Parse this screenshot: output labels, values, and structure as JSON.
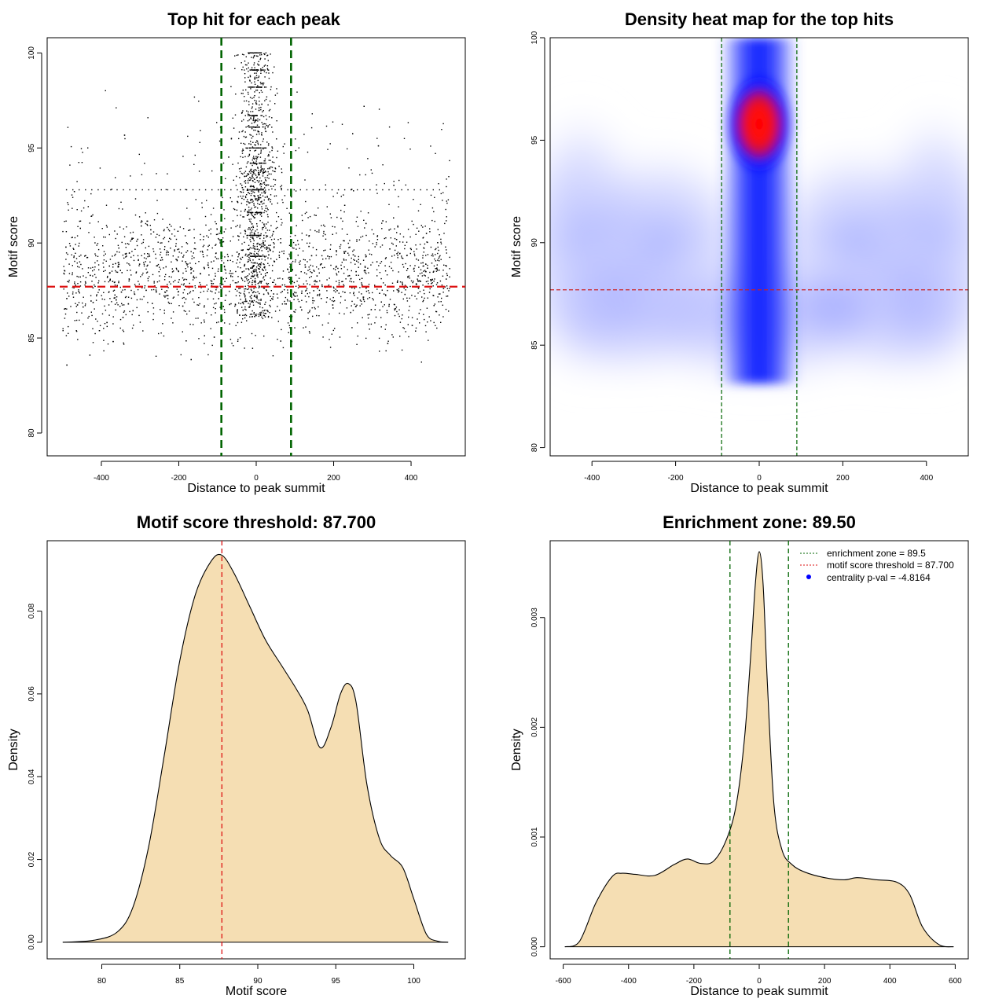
{
  "chart_data": [
    {
      "id": "scatter",
      "type": "scatter",
      "title": "Top hit for each peak",
      "xlabel": "Distance to peak summit",
      "ylabel": "Motif score",
      "xlim": [
        -540,
        540
      ],
      "ylim": [
        78.8,
        100.8
      ],
      "xticks": [
        -400,
        -200,
        0,
        200,
        400
      ],
      "yticks": [
        80,
        85,
        90,
        95,
        100
      ],
      "vlines": [
        -90,
        90
      ],
      "hline": 87.7,
      "line_colors": {
        "vertical": "#006400",
        "horizontal": "#dd1111"
      },
      "point_color": "#000000",
      "points_note": "approx. 3000 points, x in [-500, 500], y in [80, 100]; dense near x=0 and y 85-92"
    },
    {
      "id": "heatmap",
      "type": "heatmap",
      "title": "Density heat map for the top hits",
      "xlabel": "Distance to peak summit",
      "ylabel": "Motif score",
      "xlim": [
        -500,
        500
      ],
      "ylim": [
        79.6,
        100
      ],
      "xticks": [
        -400,
        -200,
        0,
        200,
        400
      ],
      "yticks": [
        80,
        85,
        90,
        95,
        100
      ],
      "vlines": [
        -90,
        90
      ],
      "hline": 87.7,
      "colors": {
        "low": "#ffffff",
        "mid": "#0000ff",
        "high": "#ff0000"
      },
      "peak": {
        "x": 0,
        "y": 95.8
      }
    },
    {
      "id": "score_density",
      "type": "area",
      "title": "Motif score threshold: 87.700",
      "xlabel": "Motif score",
      "ylabel": "Density",
      "xlim": [
        76.5,
        103.3
      ],
      "ylim": [
        -0.004,
        0.097
      ],
      "xticks": [
        80,
        85,
        90,
        95,
        100
      ],
      "yticks": [
        0.0,
        0.02,
        0.04,
        0.06,
        0.08
      ],
      "ytick_labels": [
        "0.00",
        "0.02",
        "0.04",
        "0.06",
        "0.08"
      ],
      "vline": 87.7,
      "fill": "#f5deb3",
      "x": [
        77.5,
        79.5,
        81.0,
        82.0,
        83.0,
        84.0,
        85.0,
        86.0,
        87.0,
        87.7,
        88.5,
        89.5,
        90.5,
        91.5,
        92.5,
        93.2,
        94.0,
        94.7,
        95.3,
        95.8,
        96.3,
        97.0,
        97.8,
        98.5,
        99.3,
        100.0,
        100.8,
        101.5,
        102.2
      ],
      "y": [
        0.0,
        0.0005,
        0.0025,
        0.0085,
        0.023,
        0.045,
        0.068,
        0.084,
        0.092,
        0.0935,
        0.089,
        0.081,
        0.073,
        0.067,
        0.061,
        0.056,
        0.047,
        0.052,
        0.06,
        0.0625,
        0.058,
        0.038,
        0.025,
        0.021,
        0.018,
        0.0105,
        0.002,
        0.0003,
        0.0
      ]
    },
    {
      "id": "distance_density",
      "type": "area",
      "title": "Enrichment zone: 89.50",
      "xlabel": "Distance to peak summit",
      "ylabel": "Density",
      "xlim": [
        -640,
        640
      ],
      "ylim": [
        -0.00011,
        0.0037
      ],
      "xticks": [
        -600,
        -400,
        -200,
        0,
        200,
        400,
        600
      ],
      "yticks": [
        0.0,
        0.001,
        0.002,
        0.003
      ],
      "ytick_labels": [
        "0.000",
        "0.001",
        "0.002",
        "0.003"
      ],
      "vlines": [
        -89.5,
        89.5
      ],
      "fill": "#f5deb3",
      "x": [
        -595,
        -550,
        -500,
        -450,
        -420,
        -380,
        -320,
        -260,
        -220,
        -180,
        -140,
        -100,
        -70,
        -45,
        -25,
        -12,
        0,
        12,
        25,
        45,
        70,
        100,
        140,
        200,
        260,
        300,
        360,
        420,
        460,
        500,
        550,
        595
      ],
      "y": [
        0.0,
        5e-05,
        0.0004,
        0.00064,
        0.00067,
        0.00066,
        0.00065,
        0.00075,
        0.0008,
        0.00076,
        0.00078,
        0.00098,
        0.0013,
        0.0019,
        0.0027,
        0.0033,
        0.0036,
        0.0033,
        0.0024,
        0.0013,
        0.00088,
        0.00075,
        0.00068,
        0.00063,
        0.00061,
        0.00063,
        0.00061,
        0.00059,
        0.00048,
        0.00018,
        2e-05,
        0.0
      ],
      "legend": {
        "position": "top-right",
        "items": [
          {
            "label": "enrichment zone = 89.5",
            "style": "dotted-line",
            "color": "#006400"
          },
          {
            "label": "motif score threshold = 87.700",
            "style": "dotted-line",
            "color": "#dd1111"
          },
          {
            "label": "centrality p-val = -4.8164",
            "style": "point",
            "color": "#0000ff"
          }
        ]
      }
    }
  ]
}
